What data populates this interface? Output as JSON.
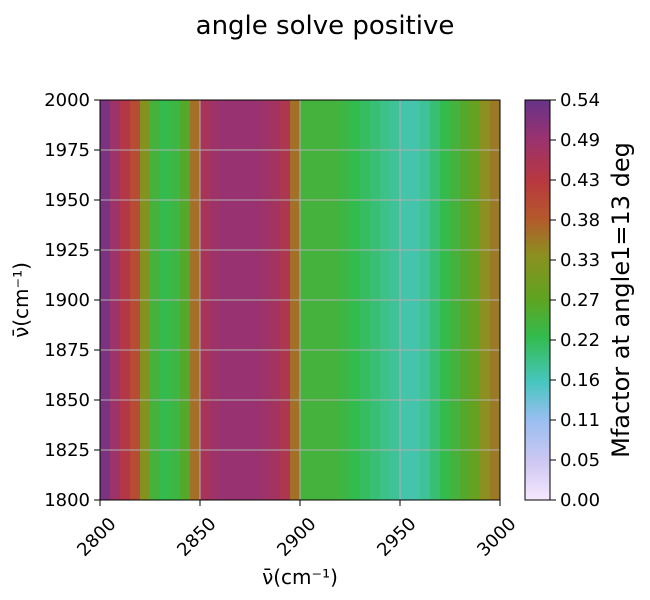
{
  "chart_data": {
    "type": "heatmap",
    "title": "angle solve positive",
    "xlabel": "ν̄(cm⁻¹)",
    "ylabel": "ν̄(cm⁻¹)",
    "xlim": [
      2800,
      3000
    ],
    "ylim": [
      1800,
      2000
    ],
    "x_ticks": [
      2800,
      2850,
      2900,
      2950,
      3000
    ],
    "y_ticks": [
      1800,
      1825,
      1850,
      1875,
      1900,
      1925,
      1950,
      1975,
      2000
    ],
    "grid": true,
    "note_rows": "values vary only with x; constant along y",
    "x": [
      2800,
      2805,
      2810,
      2815,
      2820,
      2825,
      2830,
      2835,
      2840,
      2845,
      2850,
      2855,
      2860,
      2865,
      2870,
      2875,
      2880,
      2885,
      2890,
      2895,
      2900,
      2905,
      2910,
      2915,
      2920,
      2925,
      2930,
      2935,
      2940,
      2945,
      2950,
      2955,
      2960,
      2965,
      2970,
      2975,
      2980,
      2985,
      2990,
      2995
    ],
    "values": [
      0.52,
      0.48,
      0.44,
      0.4,
      0.32,
      0.24,
      0.22,
      0.23,
      0.26,
      0.36,
      0.46,
      0.48,
      0.49,
      0.49,
      0.49,
      0.49,
      0.48,
      0.47,
      0.45,
      0.36,
      0.24,
      0.24,
      0.24,
      0.24,
      0.23,
      0.22,
      0.21,
      0.2,
      0.19,
      0.18,
      0.17,
      0.17,
      0.18,
      0.2,
      0.22,
      0.24,
      0.26,
      0.28,
      0.33,
      0.35
    ],
    "colorbar": {
      "label": "Mfactor at angle1=13 deg",
      "range": [
        0.0,
        0.54
      ],
      "tick_labels": [
        "0.00",
        "0.05",
        "0.11",
        "0.16",
        "0.22",
        "0.27",
        "0.33",
        "0.38",
        "0.43",
        "0.49",
        "0.54"
      ],
      "colormap": [
        {
          "v": 0.0,
          "color": "#f6e8ff"
        },
        {
          "v": 0.05,
          "color": "#cfc8f2"
        },
        {
          "v": 0.11,
          "color": "#97bef0"
        },
        {
          "v": 0.16,
          "color": "#46c6be"
        },
        {
          "v": 0.22,
          "color": "#33bb4e"
        },
        {
          "v": 0.27,
          "color": "#5ea421"
        },
        {
          "v": 0.33,
          "color": "#8b9020"
        },
        {
          "v": 0.38,
          "color": "#b4592c"
        },
        {
          "v": 0.43,
          "color": "#b8383f"
        },
        {
          "v": 0.49,
          "color": "#983271"
        },
        {
          "v": 0.54,
          "color": "#663388"
        }
      ]
    }
  }
}
